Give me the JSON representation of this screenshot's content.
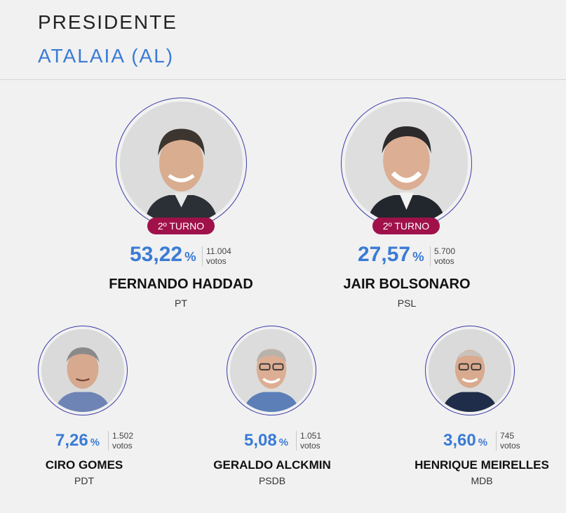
{
  "header": {
    "title": "PRESIDENTE",
    "subtitle": "ATALAIA (AL)"
  },
  "colors": {
    "accent_blue": "#3a7bd5",
    "badge": "#a0114a",
    "ring": "#3b3ba8",
    "background": "#f1f1f1"
  },
  "candidates": [
    {
      "name": "FERNANDO HADDAD",
      "party": "PT",
      "percent": "53,22",
      "percent_symbol": "%",
      "votes_count": "11.004",
      "votes_label": "votos",
      "badge": "2º TURNO",
      "photo": "candidate-photo"
    },
    {
      "name": "JAIR BOLSONARO",
      "party": "PSL",
      "percent": "27,57",
      "percent_symbol": "%",
      "votes_count": "5.700",
      "votes_label": "votos",
      "badge": "2º TURNO",
      "photo": "candidate-photo"
    },
    {
      "name": "CIRO GOMES",
      "party": "PDT",
      "percent": "7,26",
      "percent_symbol": "%",
      "votes_count": "1.502",
      "votes_label": "votos",
      "photo": "candidate-photo"
    },
    {
      "name": "GERALDO ALCKMIN",
      "party": "PSDB",
      "percent": "5,08",
      "percent_symbol": "%",
      "votes_count": "1.051",
      "votes_label": "votos",
      "photo": "candidate-photo"
    },
    {
      "name": "HENRIQUE MEIRELLES",
      "party": "MDB",
      "percent": "3,60",
      "percent_symbol": "%",
      "votes_count": "745",
      "votes_label": "votos",
      "photo": "candidate-photo"
    }
  ]
}
